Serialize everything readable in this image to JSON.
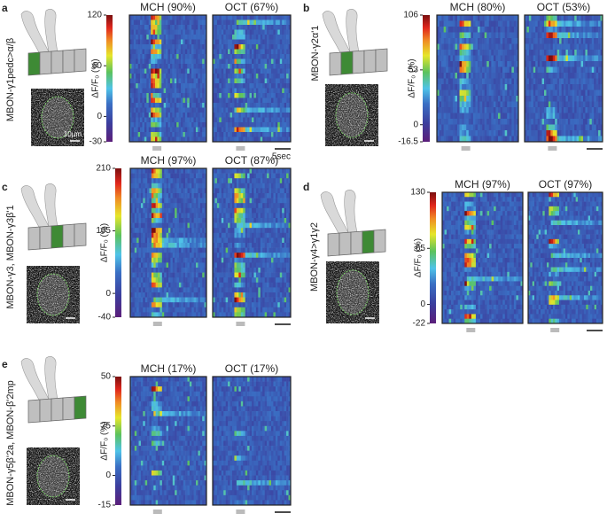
{
  "panels": [
    {
      "label": "a",
      "neuron": "MBON-γ1pedc>α/β",
      "scale_label": "10µm",
      "axis_label": "ΔF/F₀ (%)",
      "odors": [
        "MCH (90%)",
        "OCT (67%)"
      ],
      "range": [
        -30,
        120
      ],
      "ticks": [
        120,
        60,
        0,
        -30
      ],
      "time_scale": "5sec"
    },
    {
      "label": "b",
      "neuron": "MBON-γ2α'1",
      "axis_label": "ΔF/F₀ (%)",
      "odors": [
        "MCH (80%)",
        "OCT (53%)"
      ],
      "range": [
        -16.5,
        106
      ],
      "ticks": [
        106,
        53,
        0,
        -16.5
      ]
    },
    {
      "label": "c",
      "neuron": "MBON-γ3, MBON-γ3β'1",
      "axis_label": "ΔF/F₀ (%)",
      "odors": [
        "MCH (97%)",
        "OCT (87%)"
      ],
      "range": [
        -40,
        210
      ],
      "ticks": [
        210,
        105,
        0,
        -40
      ]
    },
    {
      "label": "d",
      "neuron": "MBON-γ4>γ1γ2",
      "axis_label": "ΔF/F₀ (%)",
      "odors": [
        "MCH (97%)",
        "OCT (97%)"
      ],
      "range": [
        -22,
        130
      ],
      "ticks": [
        130,
        65,
        0,
        -22
      ]
    },
    {
      "label": "e",
      "neuron": "MBON-γ5β'2a, MBON-β'2mp",
      "axis_label": "ΔF/F₀ (%)",
      "odors": [
        "MCH (17%)",
        "OCT (17%)"
      ],
      "range": [
        -15,
        50
      ],
      "ticks": [
        50,
        25,
        0,
        -15
      ]
    }
  ]
}
